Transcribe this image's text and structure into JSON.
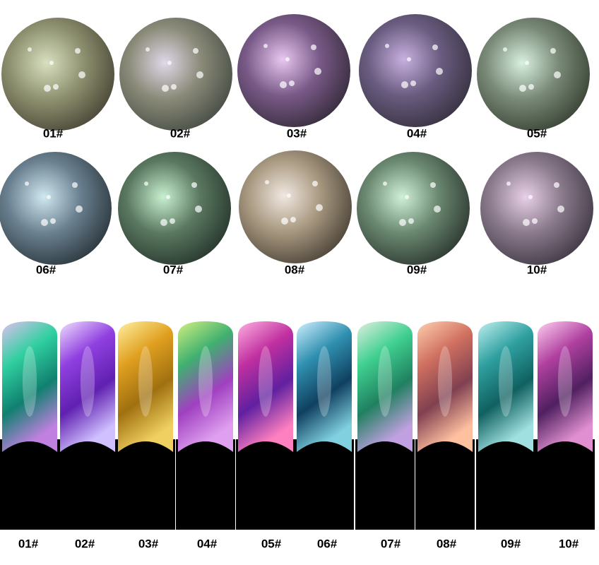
{
  "swatches": {
    "labels": [
      "01#",
      "02#",
      "03#",
      "04#",
      "05#",
      "06#",
      "07#",
      "08#",
      "09#",
      "10#"
    ]
  },
  "nails": {
    "labels": [
      "01#",
      "02#",
      "03#",
      "04#",
      "05#",
      "06#",
      "07#",
      "08#",
      "09#",
      "10#"
    ]
  }
}
